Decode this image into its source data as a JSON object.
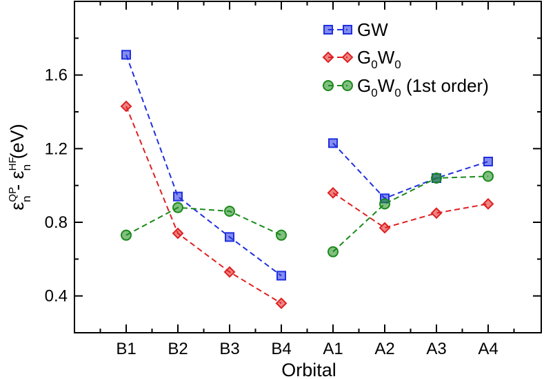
{
  "chart_data": {
    "type": "line",
    "categories": [
      "B1",
      "B2",
      "B3",
      "B4",
      "A1",
      "A2",
      "A3",
      "A4"
    ],
    "xlabel": "Orbital",
    "ylabel": {
      "epsilon": "ε",
      "n": "n",
      "qp": "QP",
      "hf": "HF",
      "minus": " - ",
      "unit": " (eV)"
    },
    "ylim": [
      0.2,
      2.0
    ],
    "yticks": [
      0.4,
      0.8,
      1.2,
      1.6
    ],
    "ytick_labels": [
      "0.4",
      "0.8",
      "1.2",
      "1.6"
    ],
    "groups": [
      [
        "B1",
        "B2",
        "B3",
        "B4"
      ],
      [
        "A1",
        "A2",
        "A3",
        "A4"
      ]
    ],
    "series": [
      {
        "name": "GW",
        "legend": {
          "base": "GW",
          "sub1": "",
          "mid": "",
          "sub2": "",
          "suffix": ""
        },
        "color": "#1f2fe0",
        "marker": "square",
        "values": [
          1.71,
          0.94,
          0.72,
          0.51,
          1.23,
          0.93,
          1.04,
          1.13
        ]
      },
      {
        "name": "G0W0",
        "legend": {
          "base": "G",
          "sub1": "0",
          "mid": "W",
          "sub2": "0",
          "suffix": ""
        },
        "color": "#e01f1f",
        "marker": "diamond",
        "values": [
          1.43,
          0.74,
          0.53,
          0.36,
          0.96,
          0.77,
          0.85,
          0.9
        ]
      },
      {
        "name": "G0W0 (1st order)",
        "legend": {
          "base": "G",
          "sub1": "0",
          "mid": "W",
          "sub2": "0",
          "suffix": " (1st order)"
        },
        "color": "#1a8a1a",
        "marker": "circle",
        "values": [
          0.73,
          0.88,
          0.86,
          0.73,
          0.64,
          0.9,
          1.04,
          1.05
        ]
      }
    ]
  }
}
